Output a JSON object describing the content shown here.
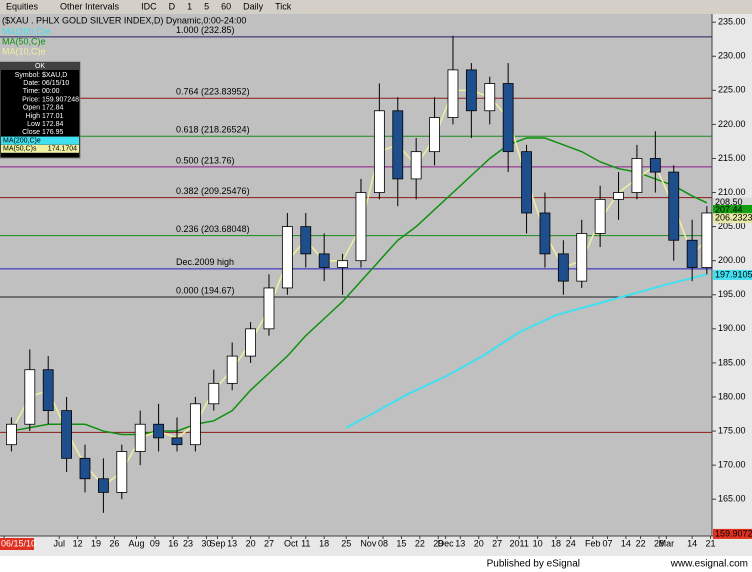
{
  "toolbar": [
    "Equities",
    "Other Intervals",
    "IDC",
    "D",
    "1",
    "5",
    "60",
    "Daily",
    "Tick"
  ],
  "chart_data": {
    "type": "candlestick",
    "title": "($XAU . PHLX GOLD SILVER INDEX,D) Dynamic,0:00-24:00",
    "xlim": [
      -1.1,
      192.4
    ],
    "ylim": [
      159.6,
      236.2
    ],
    "xticks": [
      {
        "value": 0,
        "label": "06/15/10"
      },
      {
        "value": 15,
        "label": "Jul"
      },
      {
        "value": 20,
        "label": "12"
      },
      {
        "value": 25,
        "label": "19"
      },
      {
        "value": 30,
        "label": "26"
      },
      {
        "value": 36,
        "label": "Aug"
      },
      {
        "value": 41,
        "label": "09"
      },
      {
        "value": 46,
        "label": "16"
      },
      {
        "value": 50,
        "label": "23"
      },
      {
        "value": 55,
        "label": "30"
      },
      {
        "value": 58,
        "label": "Sep"
      },
      {
        "value": 62,
        "label": "13"
      },
      {
        "value": 67,
        "label": "20"
      },
      {
        "value": 72,
        "label": "27"
      },
      {
        "value": 78,
        "label": "Oct"
      },
      {
        "value": 82,
        "label": "11"
      },
      {
        "value": 87,
        "label": "18"
      },
      {
        "value": 93,
        "label": "25"
      },
      {
        "value": 99,
        "label": "Nov"
      },
      {
        "value": 103,
        "label": "08"
      },
      {
        "value": 108,
        "label": "15"
      },
      {
        "value": 113,
        "label": "22"
      },
      {
        "value": 118,
        "label": "29"
      },
      {
        "value": 120,
        "label": "Dec"
      },
      {
        "value": 124,
        "label": "13"
      },
      {
        "value": 129,
        "label": "20"
      },
      {
        "value": 134,
        "label": "27"
      },
      {
        "value": 140,
        "label": "2011"
      },
      {
        "value": 145,
        "label": "10"
      },
      {
        "value": 150,
        "label": "18"
      },
      {
        "value": 154,
        "label": "24"
      },
      {
        "value": 160,
        "label": "Feb"
      },
      {
        "value": 164,
        "label": "07"
      },
      {
        "value": 169,
        "label": "14"
      },
      {
        "value": 173,
        "label": "22"
      },
      {
        "value": 178,
        "label": "28"
      },
      {
        "value": 180,
        "label": "Mar"
      },
      {
        "value": 187,
        "label": "14"
      },
      {
        "value": 192,
        "label": "21"
      }
    ],
    "yticks": [
      {
        "value": 235,
        "label": "235.00"
      },
      {
        "value": 230,
        "label": "230.00"
      },
      {
        "value": 225,
        "label": "225.00"
      },
      {
        "value": 220,
        "label": "220.00"
      },
      {
        "value": 215,
        "label": "215.00"
      },
      {
        "value": 210,
        "label": "210.00"
      },
      {
        "value": 205,
        "label": "205.00"
      },
      {
        "value": 200,
        "label": "200.00"
      },
      {
        "value": 195,
        "label": "195.00"
      },
      {
        "value": 190,
        "label": "190.00"
      },
      {
        "value": 185,
        "label": "185.00"
      },
      {
        "value": 180,
        "label": "180.00"
      },
      {
        "value": 175,
        "label": "175.00"
      },
      {
        "value": 170,
        "label": "170.00"
      },
      {
        "value": 165,
        "label": "165.00"
      }
    ],
    "candles": {
      "x": [
        2,
        7,
        12,
        17,
        22,
        27,
        32,
        37,
        42,
        47,
        52,
        57,
        62,
        67,
        72,
        77,
        82,
        87,
        92,
        97,
        102,
        107,
        112,
        117,
        122,
        127,
        132,
        137,
        142,
        147,
        152,
        157,
        162,
        167,
        172,
        177,
        182,
        187,
        191
      ],
      "open": [
        173,
        176,
        184,
        178,
        171,
        168,
        166,
        172,
        176,
        174,
        173,
        179,
        182,
        186,
        190,
        196,
        205,
        201,
        199,
        200,
        210,
        222,
        212,
        216,
        221,
        228,
        222,
        226,
        216,
        207,
        201,
        197,
        204,
        209,
        210,
        215,
        213,
        203,
        199
      ],
      "high": [
        177,
        187,
        186,
        180,
        173,
        171,
        173,
        178,
        179,
        177,
        180,
        184,
        188,
        191,
        198,
        207,
        207,
        204,
        201,
        212,
        226,
        224,
        218,
        224,
        233,
        229,
        227,
        229,
        217,
        210,
        203,
        206,
        211,
        213,
        217,
        219,
        214,
        206,
        208
      ],
      "low": [
        172,
        175,
        176,
        169,
        166,
        163,
        165,
        170,
        172,
        172,
        172,
        178,
        181,
        185,
        189,
        195,
        199,
        197,
        195,
        199,
        209,
        208,
        209,
        214,
        220,
        218,
        220,
        213,
        204,
        199,
        195,
        196,
        202,
        206,
        209,
        210,
        200,
        197,
        198
      ],
      "close": [
        176,
        184,
        178,
        171,
        168,
        166,
        172,
        176,
        174,
        173,
        179,
        182,
        186,
        190,
        196,
        205,
        201,
        199,
        200,
        210,
        222,
        212,
        216,
        221,
        228,
        222,
        226,
        216,
        207,
        201,
        197,
        204,
        209,
        210,
        215,
        213,
        203,
        199,
        207
      ]
    },
    "series": [
      {
        "name": "MA(200,C)e",
        "color": "#40e0f0",
        "x": [
          93,
          100,
          110,
          120,
          130,
          140,
          150,
          160,
          170,
          180,
          191
        ],
        "values": [
          175.5,
          177.5,
          180.5,
          183,
          186,
          189.5,
          192,
          193.5,
          195,
          196.5,
          198
        ]
      },
      {
        "name": "MA(50,C)e",
        "color": "#109010",
        "x": [
          2,
          7,
          12,
          17,
          22,
          27,
          32,
          37,
          42,
          47,
          52,
          57,
          62,
          67,
          72,
          77,
          82,
          87,
          92,
          97,
          102,
          107,
          112,
          117,
          122,
          127,
          132,
          137,
          142,
          147,
          152,
          157,
          162,
          167,
          172,
          177,
          182,
          187,
          191
        ],
        "values": [
          175,
          175.5,
          176,
          176,
          176,
          175,
          174.5,
          174.5,
          175,
          175,
          176,
          176.5,
          178,
          181,
          183.5,
          186,
          189,
          191.5,
          194,
          197,
          200,
          203,
          205,
          207.5,
          210,
          212.5,
          215,
          217,
          218,
          218,
          217,
          216,
          214.5,
          213.5,
          213,
          212,
          211,
          209.5,
          208.5
        ]
      },
      {
        "name": "MA(10,C)e",
        "color": "#f0f0a0",
        "x": [
          2,
          7,
          12,
          17,
          22,
          27,
          32,
          37,
          42,
          47,
          52,
          57,
          62,
          67,
          72,
          77,
          82,
          87,
          92,
          97,
          102,
          107,
          112,
          117,
          122,
          127,
          132,
          137,
          142,
          147,
          152,
          157,
          162,
          167,
          172,
          177,
          182,
          187,
          191
        ],
        "values": [
          175,
          180,
          181,
          175,
          170,
          167,
          169,
          174,
          175,
          174,
          176,
          181,
          184,
          188,
          193,
          200,
          203,
          200,
          200,
          205,
          216,
          217,
          214,
          218,
          225,
          225,
          224,
          221,
          212,
          204,
          199,
          200,
          206,
          210,
          212,
          214,
          208,
          201,
          203
        ]
      }
    ],
    "levels": [
      {
        "label": "1.000 (232.85)",
        "value": 232.85,
        "color": "#202060"
      },
      {
        "label": "0.764 (223.83952)",
        "value": 223.83952,
        "color": "#8b1a1a"
      },
      {
        "label": "0.618 (218.26524)",
        "value": 218.26524,
        "color": "#1a8a1a"
      },
      {
        "label": "0.500 (213.76)",
        "value": 213.76,
        "color": "#8a1a8a"
      },
      {
        "label": "0.382 (209.25476)",
        "value": 209.25476,
        "color": "#8b1a1a"
      },
      {
        "label": "0.236 (203.68048)",
        "value": 203.68048,
        "color": "#1a8a1a"
      },
      {
        "label": "Dec.2009 high",
        "value": 198.8,
        "color": "#2020c0"
      },
      {
        "label": "0.000 (194.67)",
        "value": 194.67,
        "color": "#202020"
      },
      {
        "value": 174.8,
        "color": "#8b1a1a"
      }
    ],
    "last_values": [
      {
        "value": 208.5,
        "label": "208.50",
        "color": "#d8d8d8"
      },
      {
        "value": 207.44,
        "color": "#10a010"
      },
      {
        "value": 206.2323,
        "color": "#e8e8a8"
      },
      {
        "value": 197.9105,
        "color": "#40e0f0"
      },
      {
        "value": 159.90724,
        "color": "#e03020"
      }
    ],
    "data_window": {
      "header": "OK",
      "rows": [
        {
          "label": "Symbol:",
          "text": "$XAU,D"
        },
        {
          "label": "Date:",
          "text": "06/15/10"
        },
        {
          "label": "Time:",
          "text": "00:00"
        },
        {
          "label": "Price:",
          "value": 159.907248
        },
        {
          "label": "Open",
          "value": 172.84
        },
        {
          "label": "High",
          "value": 177.01
        },
        {
          "label": "Low",
          "value": 172.84
        },
        {
          "label": "Close",
          "value": 176.95
        },
        {
          "label": "MA(200,C)e",
          "color": "#40e0f0"
        },
        {
          "label": "MA(50,C)s",
          "value": 174.1704,
          "color": "#f0f0a0"
        }
      ]
    }
  },
  "footer": {
    "publisher": "Published by eSignal",
    "url": "www.esignal.com"
  }
}
